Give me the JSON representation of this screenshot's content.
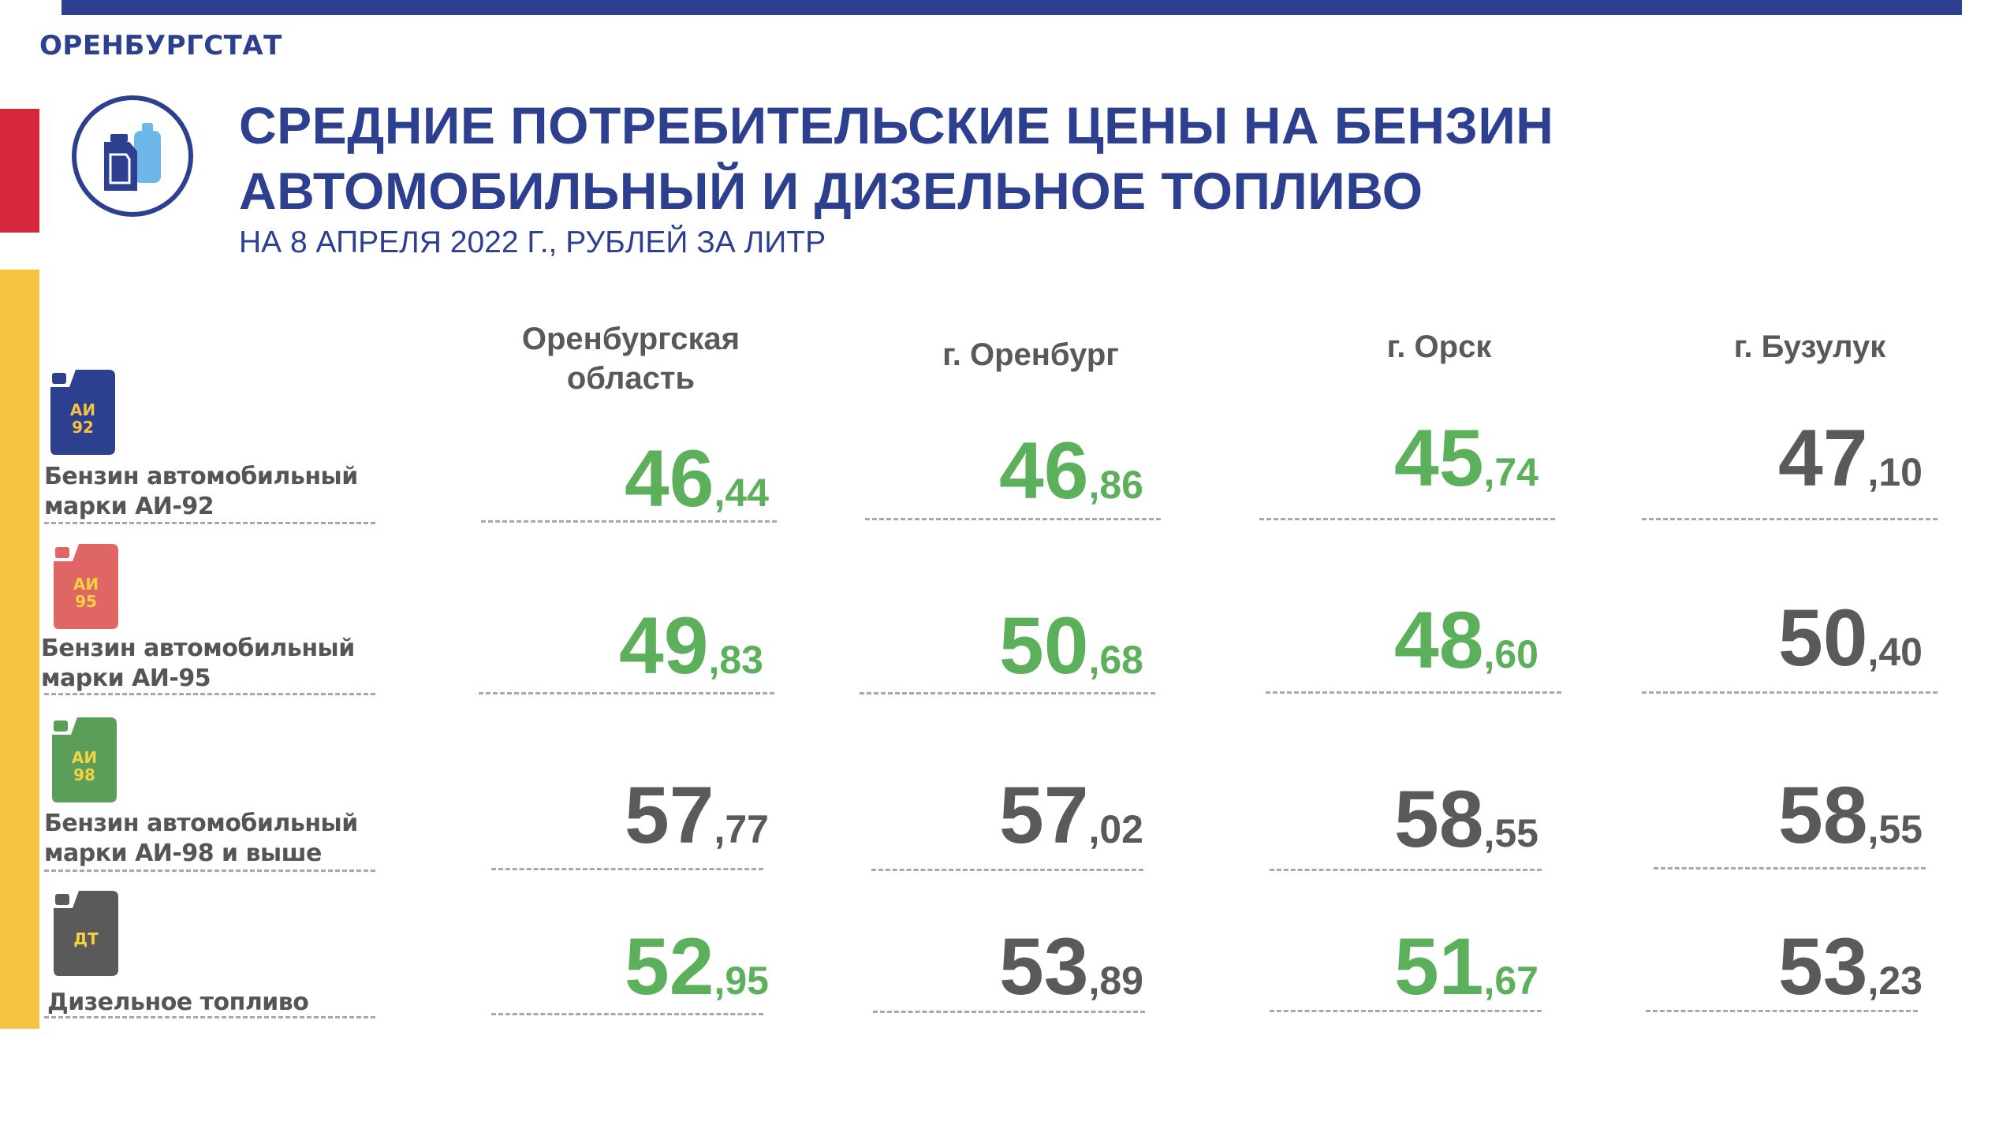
{
  "header": {
    "org": "ОРЕНБУРГСТАТ",
    "title_line1": "СРЕДНИЕ ПОТРЕБИТЕЛЬСКИЕ ЦЕНЫ НА БЕНЗИН",
    "title_line2": "АВТОМОБИЛЬНЫЙ И ДИЗЕЛЬНОЕ ТОПЛИВО",
    "subtitle": "НА 8 АПРЕЛЯ 2022 Г., РУБЛЕЙ ЗА ЛИТР"
  },
  "columns": [
    {
      "line1": "Оренбургская",
      "line2": "область"
    },
    {
      "line1": "г. Оренбург",
      "line2": ""
    },
    {
      "line1": "г. Орск",
      "line2": ""
    },
    {
      "line1": "г. Бузулук",
      "line2": ""
    }
  ],
  "rows": [
    {
      "icon": "canister-icon",
      "icon_line1": "АИ",
      "icon_line2": "92",
      "icon_color": "#2d3f8f",
      "icon_text_color": "#f5c242",
      "label_line1": "Бензин автомобильный",
      "label_line2": "марки АИ-92",
      "prices": [
        {
          "int": "46",
          "frac": ",44",
          "color": "green"
        },
        {
          "int": "46",
          "frac": ",86",
          "color": "green"
        },
        {
          "int": "45",
          "frac": ",74",
          "color": "green"
        },
        {
          "int": "47",
          "frac": ",10",
          "color": "gray"
        }
      ]
    },
    {
      "icon": "canister-icon",
      "icon_line1": "АИ",
      "icon_line2": "95",
      "icon_color": "#e06666",
      "icon_text_color": "#f5d142",
      "label_line1": "Бензин автомобильный",
      "label_line2": "марки АИ-95",
      "prices": [
        {
          "int": "49",
          "frac": ",83",
          "color": "green"
        },
        {
          "int": "50",
          "frac": ",68",
          "color": "green"
        },
        {
          "int": "48",
          "frac": ",60",
          "color": "green"
        },
        {
          "int": "50",
          "frac": ",40",
          "color": "gray"
        }
      ]
    },
    {
      "icon": "canister-icon",
      "icon_line1": "АИ",
      "icon_line2": "98",
      "icon_color": "#5a9e5a",
      "icon_text_color": "#f5d142",
      "label_line1": "Бензин автомобильный",
      "label_line2": "марки АИ-98 и выше",
      "prices": [
        {
          "int": "57",
          "frac": ",77",
          "color": "gray"
        },
        {
          "int": "57",
          "frac": ",02",
          "color": "gray"
        },
        {
          "int": "58",
          "frac": ",55",
          "color": "gray"
        },
        {
          "int": "58",
          "frac": ",55",
          "color": "gray"
        }
      ]
    },
    {
      "icon": "canister-icon",
      "icon_line1": "ДТ",
      "icon_line2": "",
      "icon_color": "#5a5a5a",
      "icon_text_color": "#f5d142",
      "label_line1": "Дизельное топливо",
      "label_line2": "",
      "prices": [
        {
          "int": "52",
          "frac": ",95",
          "color": "green"
        },
        {
          "int": "53",
          "frac": ",89",
          "color": "gray"
        },
        {
          "int": "51",
          "frac": ",67",
          "color": "green"
        },
        {
          "int": "53",
          "frac": ",23",
          "color": "gray"
        }
      ]
    }
  ],
  "colors": {
    "brand": "#2d3f8f",
    "green": "#5cb05c",
    "gray": "#5a5a5a",
    "red": "#d6283a",
    "yellow": "#f5c242"
  }
}
